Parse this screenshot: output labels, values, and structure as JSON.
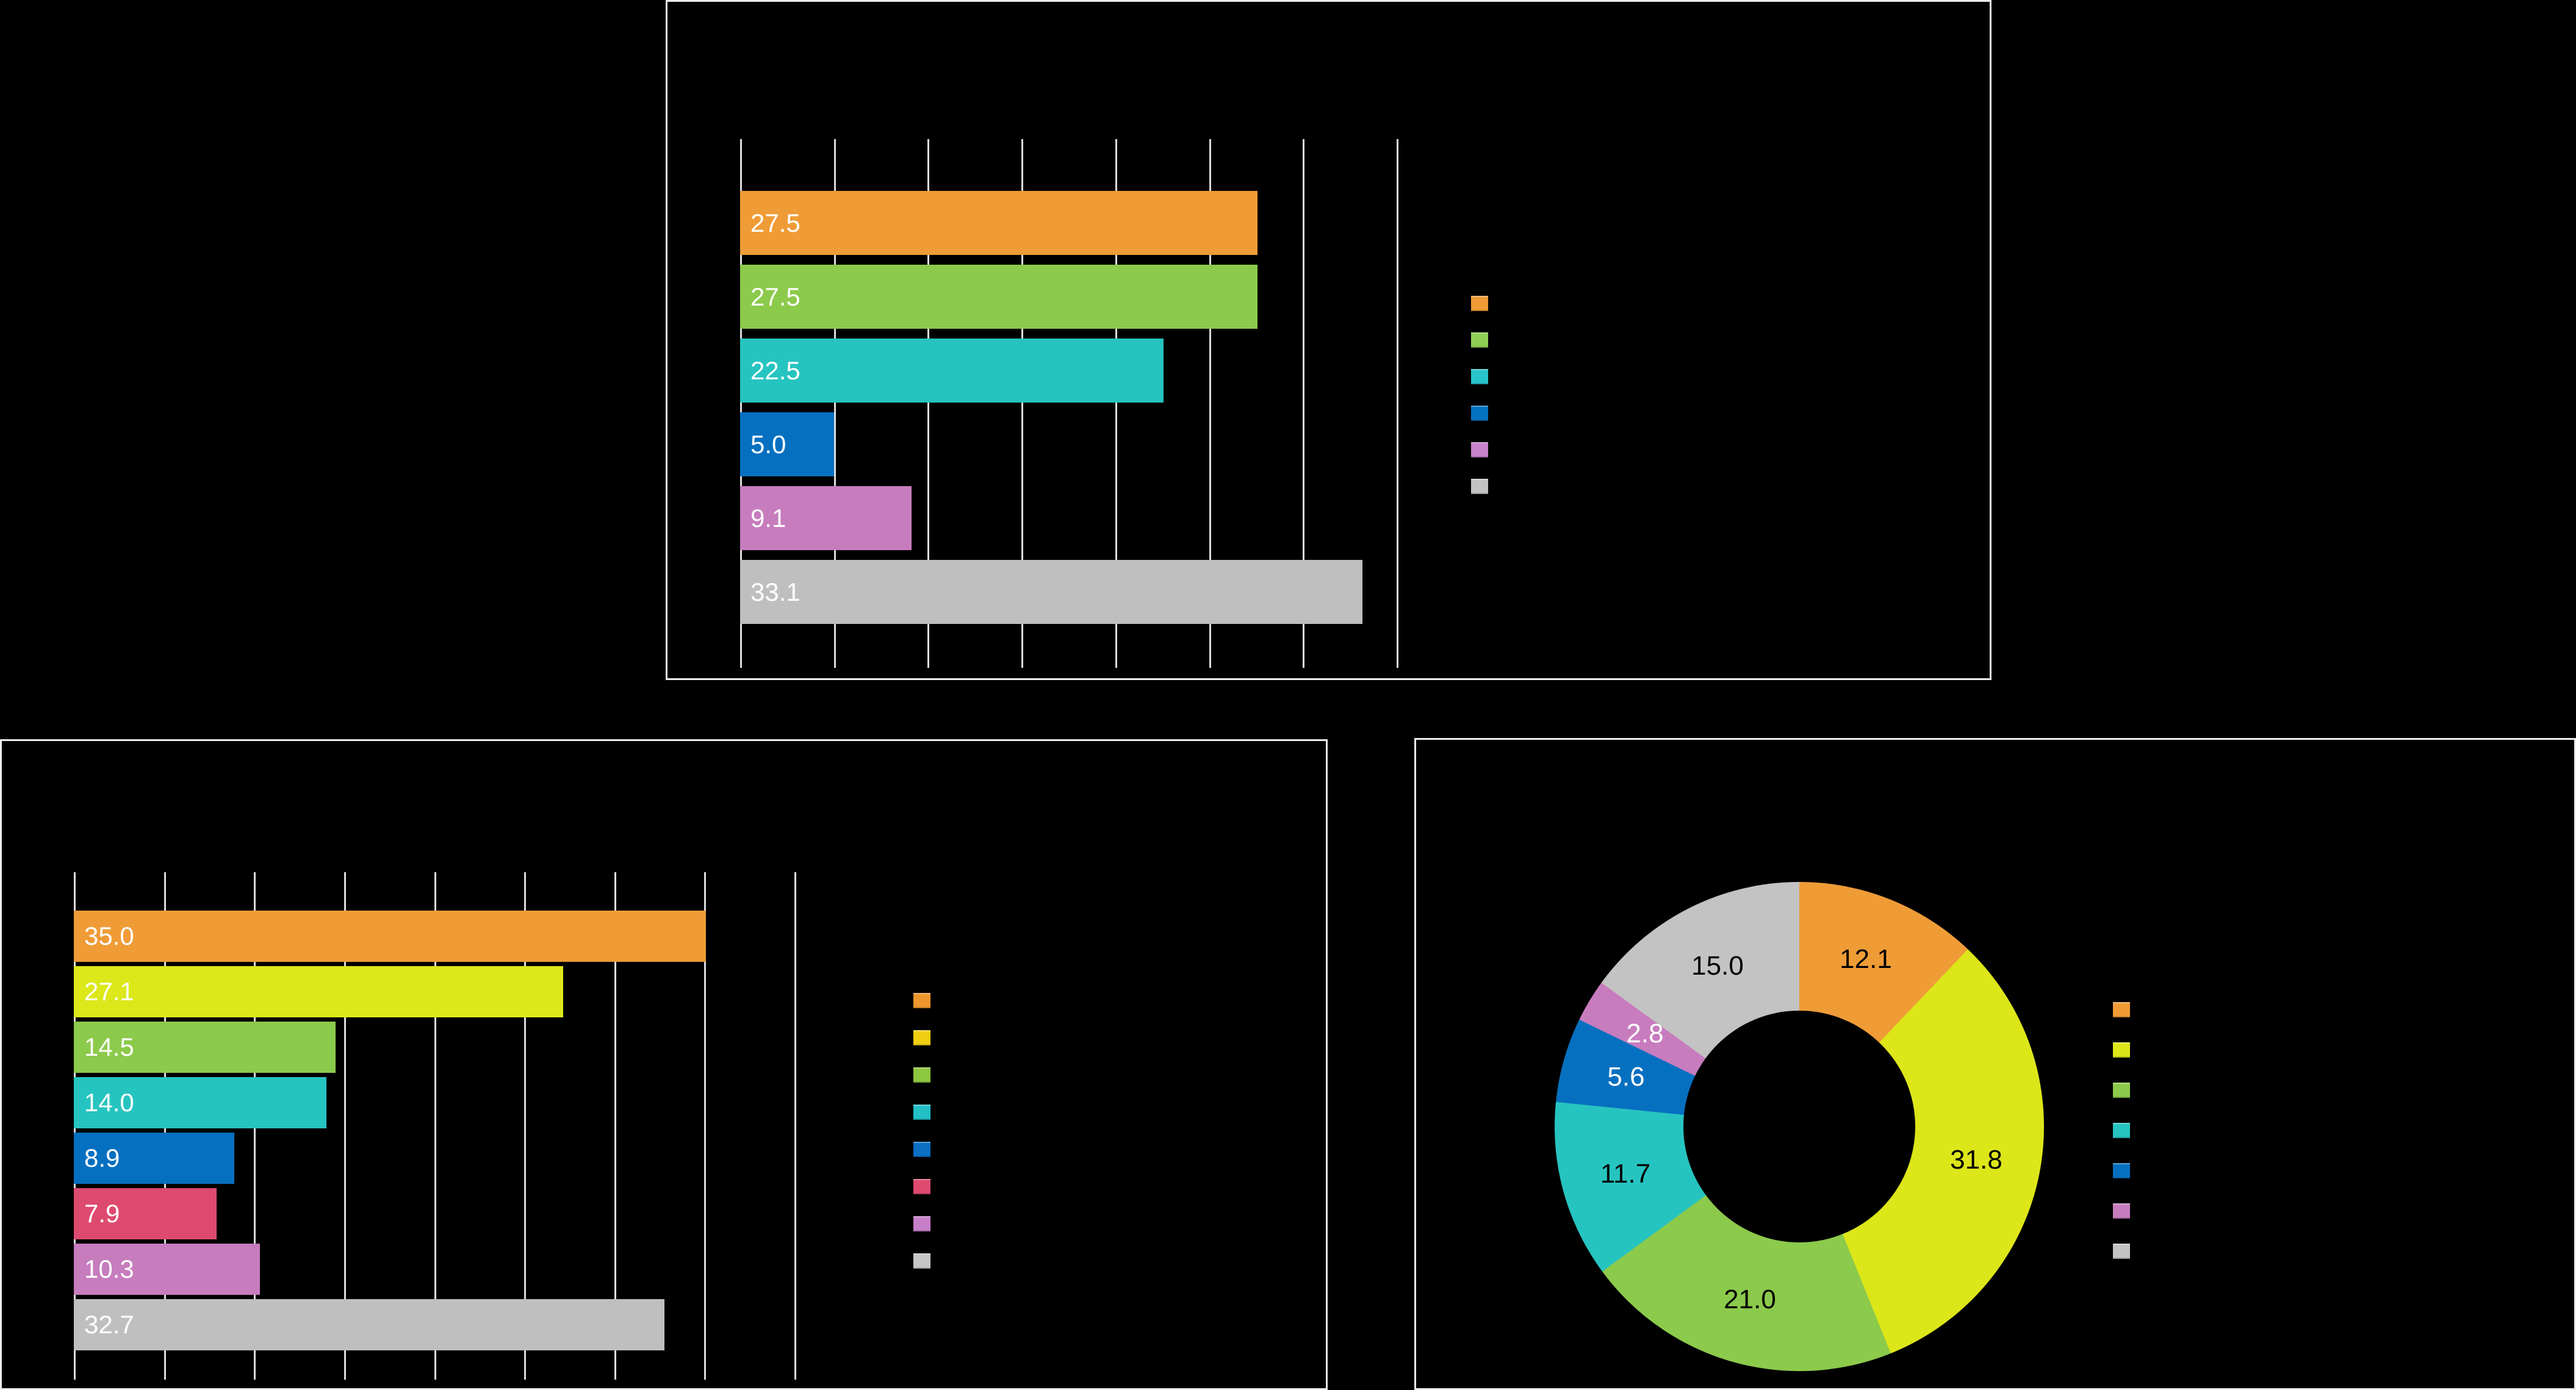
{
  "canvas": {
    "background_color": "#000000",
    "card_border_color": "#ECECEC",
    "gridline_color": "#DCDCDC"
  },
  "chart_data": [
    {
      "id": "top-bar-chart",
      "type": "bar",
      "orientation": "horizontal",
      "title": "",
      "grid_on": true,
      "xlim": [
        0,
        35
      ],
      "grid_step": 5,
      "gridline_count": 8,
      "legend_position": "right",
      "legend_labels_visible": false,
      "value_label_color": "#FFFFFF",
      "series": [
        {
          "label": "27.5",
          "value": 27.5,
          "color": "#EF9C37",
          "legend_color": "#EF9C37"
        },
        {
          "label": "27.5",
          "value": 27.5,
          "color": "#8CCA4B",
          "legend_color": "#8FD054"
        },
        {
          "label": "22.5",
          "value": 22.5,
          "color": "#26C4C0",
          "legend_color": "#29C4CB"
        },
        {
          "label": "5.0",
          "value": 5.0,
          "color": "#0670C0",
          "legend_color": "#0572C0"
        },
        {
          "label": "9.1",
          "value": 9.1,
          "color": "#C77CBE",
          "legend_color": "#C683C9"
        },
        {
          "label": "33.1",
          "value": 33.1,
          "color": "#BFBFBF",
          "legend_color": "#C2C2C2"
        }
      ]
    },
    {
      "id": "bottom-left-bar-chart",
      "type": "bar",
      "orientation": "horizontal",
      "title": "",
      "grid_on": true,
      "xlim": [
        0,
        40
      ],
      "grid_step": 5,
      "gridline_count": 9,
      "legend_position": "right",
      "legend_labels_visible": false,
      "value_label_color": "#FFFFFF",
      "series": [
        {
          "label": "35.0",
          "value": 35.0,
          "color": "#EF9C37",
          "legend_color": "#EE962D"
        },
        {
          "label": "27.1",
          "value": 27.1,
          "color": "#DCE81A",
          "legend_color": "#F0CE12"
        },
        {
          "label": "14.5",
          "value": 14.5,
          "color": "#8CCA4B",
          "legend_color": "#8DC63F"
        },
        {
          "label": "14.0",
          "value": 14.0,
          "color": "#26C4C0",
          "legend_color": "#22BFC7"
        },
        {
          "label": "8.9",
          "value": 8.9,
          "color": "#0670C0",
          "legend_color": "#0B6FC3"
        },
        {
          "label": "7.9",
          "value": 7.9,
          "color": "#DE4A6F",
          "legend_color": "#DE4A6F"
        },
        {
          "label": "10.3",
          "value": 10.3,
          "color": "#C77CBE",
          "legend_color": "#C77FC9"
        },
        {
          "label": "32.7",
          "value": 32.7,
          "color": "#BFBFBF",
          "legend_color": "#C6C6C6"
        }
      ]
    },
    {
      "id": "donut-chart",
      "type": "pie",
      "donut": true,
      "title": "",
      "start_angle_deg": 0,
      "direction": "clockwise",
      "legend_position": "right",
      "legend_labels_visible": false,
      "slices": [
        {
          "label": "12.1",
          "value": 12.1,
          "color": "#EF9C37",
          "label_color": "#000000"
        },
        {
          "label": "31.8",
          "value": 31.8,
          "color": "#DCE619",
          "label_color": "#000000"
        },
        {
          "label": "21.0",
          "value": 21.0,
          "color": "#8CCA4B",
          "label_color": "#000000"
        },
        {
          "label": "11.7",
          "value": 11.7,
          "color": "#26C4C0",
          "label_color": "#000000"
        },
        {
          "label": "5.6",
          "value": 5.6,
          "color": "#0670C0",
          "label_color": "#FFFFFF"
        },
        {
          "label": "2.8",
          "value": 2.8,
          "color": "#C77CBE",
          "label_color": "#FFFFFF"
        },
        {
          "label": "15.0",
          "value": 15.0,
          "color": "#C3C3C3",
          "label_color": "#000000"
        }
      ]
    }
  ]
}
